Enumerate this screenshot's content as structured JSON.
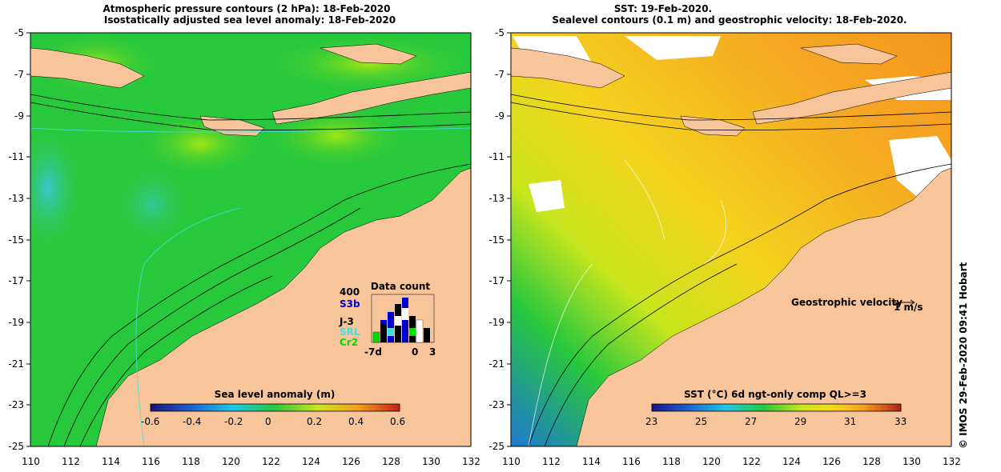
{
  "left_panel": {
    "title_line1": "Atmospheric pressure contours (2 hPa): 18-Feb-2020",
    "title_line2": "Isostatically adjusted sea level anomaly: 18-Feb-2020",
    "y_ticks": [
      "-5",
      "-7",
      "-9",
      "-11",
      "-13",
      "-15",
      "-17",
      "-19",
      "-21",
      "-23",
      "-25"
    ],
    "x_ticks": [
      "110",
      "112",
      "114",
      "116",
      "118",
      "120",
      "122",
      "124",
      "126",
      "128",
      "130",
      "132"
    ],
    "colorbar": {
      "label": "Sea level anomaly (m)",
      "ticks": [
        "-0.6",
        "-0.4",
        "-0.2",
        "0",
        "0.2",
        "0.4",
        "0.6"
      ]
    },
    "data_count": {
      "title": "Data count",
      "max_label": "400",
      "missions": [
        "S3b",
        "J-3",
        "SRL",
        "Cr2"
      ],
      "mission_colors": [
        "#0000cc",
        "#000000",
        "#40e0e0",
        "#00dd00"
      ],
      "x_labels": [
        "-7d",
        "0",
        "3"
      ]
    }
  },
  "right_panel": {
    "title_line1": "SST: 19-Feb-2020.",
    "title_line2": "Sealevel contours (0.1 m) and geostrophic velocity: 18-Feb-2020.",
    "y_ticks": [
      "-5",
      "-7",
      "-9",
      "-11",
      "-13",
      "-15",
      "-17",
      "-19",
      "-21",
      "-23",
      "-25"
    ],
    "x_ticks": [
      "110",
      "112",
      "114",
      "116",
      "118",
      "120",
      "122",
      "124",
      "126",
      "128",
      "130",
      "132"
    ],
    "velocity_legend": {
      "label": "Geostrophic velocity",
      "scale": "1 m/s"
    },
    "colorbar": {
      "label": "SST (°C) 6d ngt-only comp QL>=3",
      "ticks": [
        "23",
        "25",
        "27",
        "29",
        "31",
        "33"
      ]
    }
  },
  "credit": "© IMOS 29-Feb-2020 09:41 Hobart",
  "colors": {
    "land": "#f8c49a",
    "ocean_green": "#28c83c",
    "ocean_light": "#8ce01e",
    "sst_orange": "#f5a623",
    "sst_yellow": "#f5dc1e",
    "sst_blue": "#1e6ed2"
  }
}
